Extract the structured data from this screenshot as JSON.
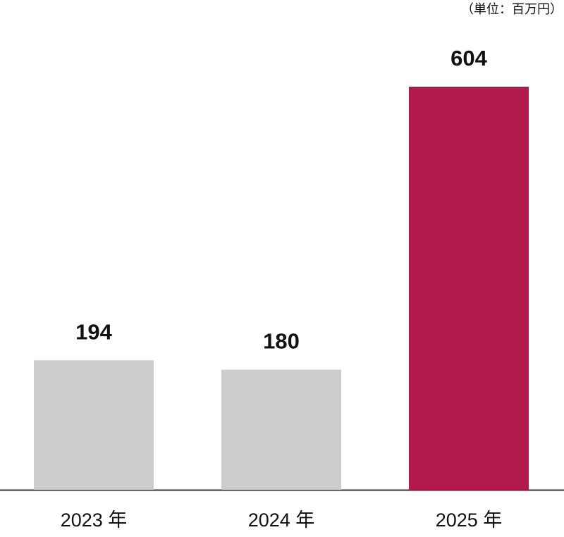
{
  "chart_data": {
    "type": "bar",
    "unit_label": "（単位：百万円）",
    "categories": [
      "2023 年",
      "2024 年",
      "2025 年"
    ],
    "values": [
      194,
      180,
      604
    ],
    "colors": [
      "#cccccc",
      "#cccccc",
      "#b2194b"
    ],
    "ylim": [
      0,
      604
    ]
  }
}
